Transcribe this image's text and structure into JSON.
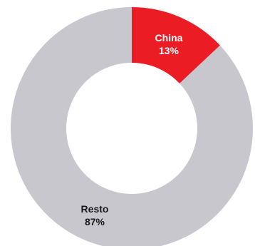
{
  "chart_data": {
    "type": "pie",
    "style": "donut",
    "categories": [
      "China",
      "Resto"
    ],
    "values": [
      13,
      87
    ],
    "value_labels": [
      "13%",
      "87%"
    ],
    "unit": "%",
    "colors": [
      "#ec1c24",
      "#c8c7ce"
    ],
    "label_colors": [
      "#ffffff",
      "#1a1a1a"
    ],
    "title": "",
    "legend": "none",
    "start_angle_deg": 0,
    "direction": "clockwise"
  }
}
